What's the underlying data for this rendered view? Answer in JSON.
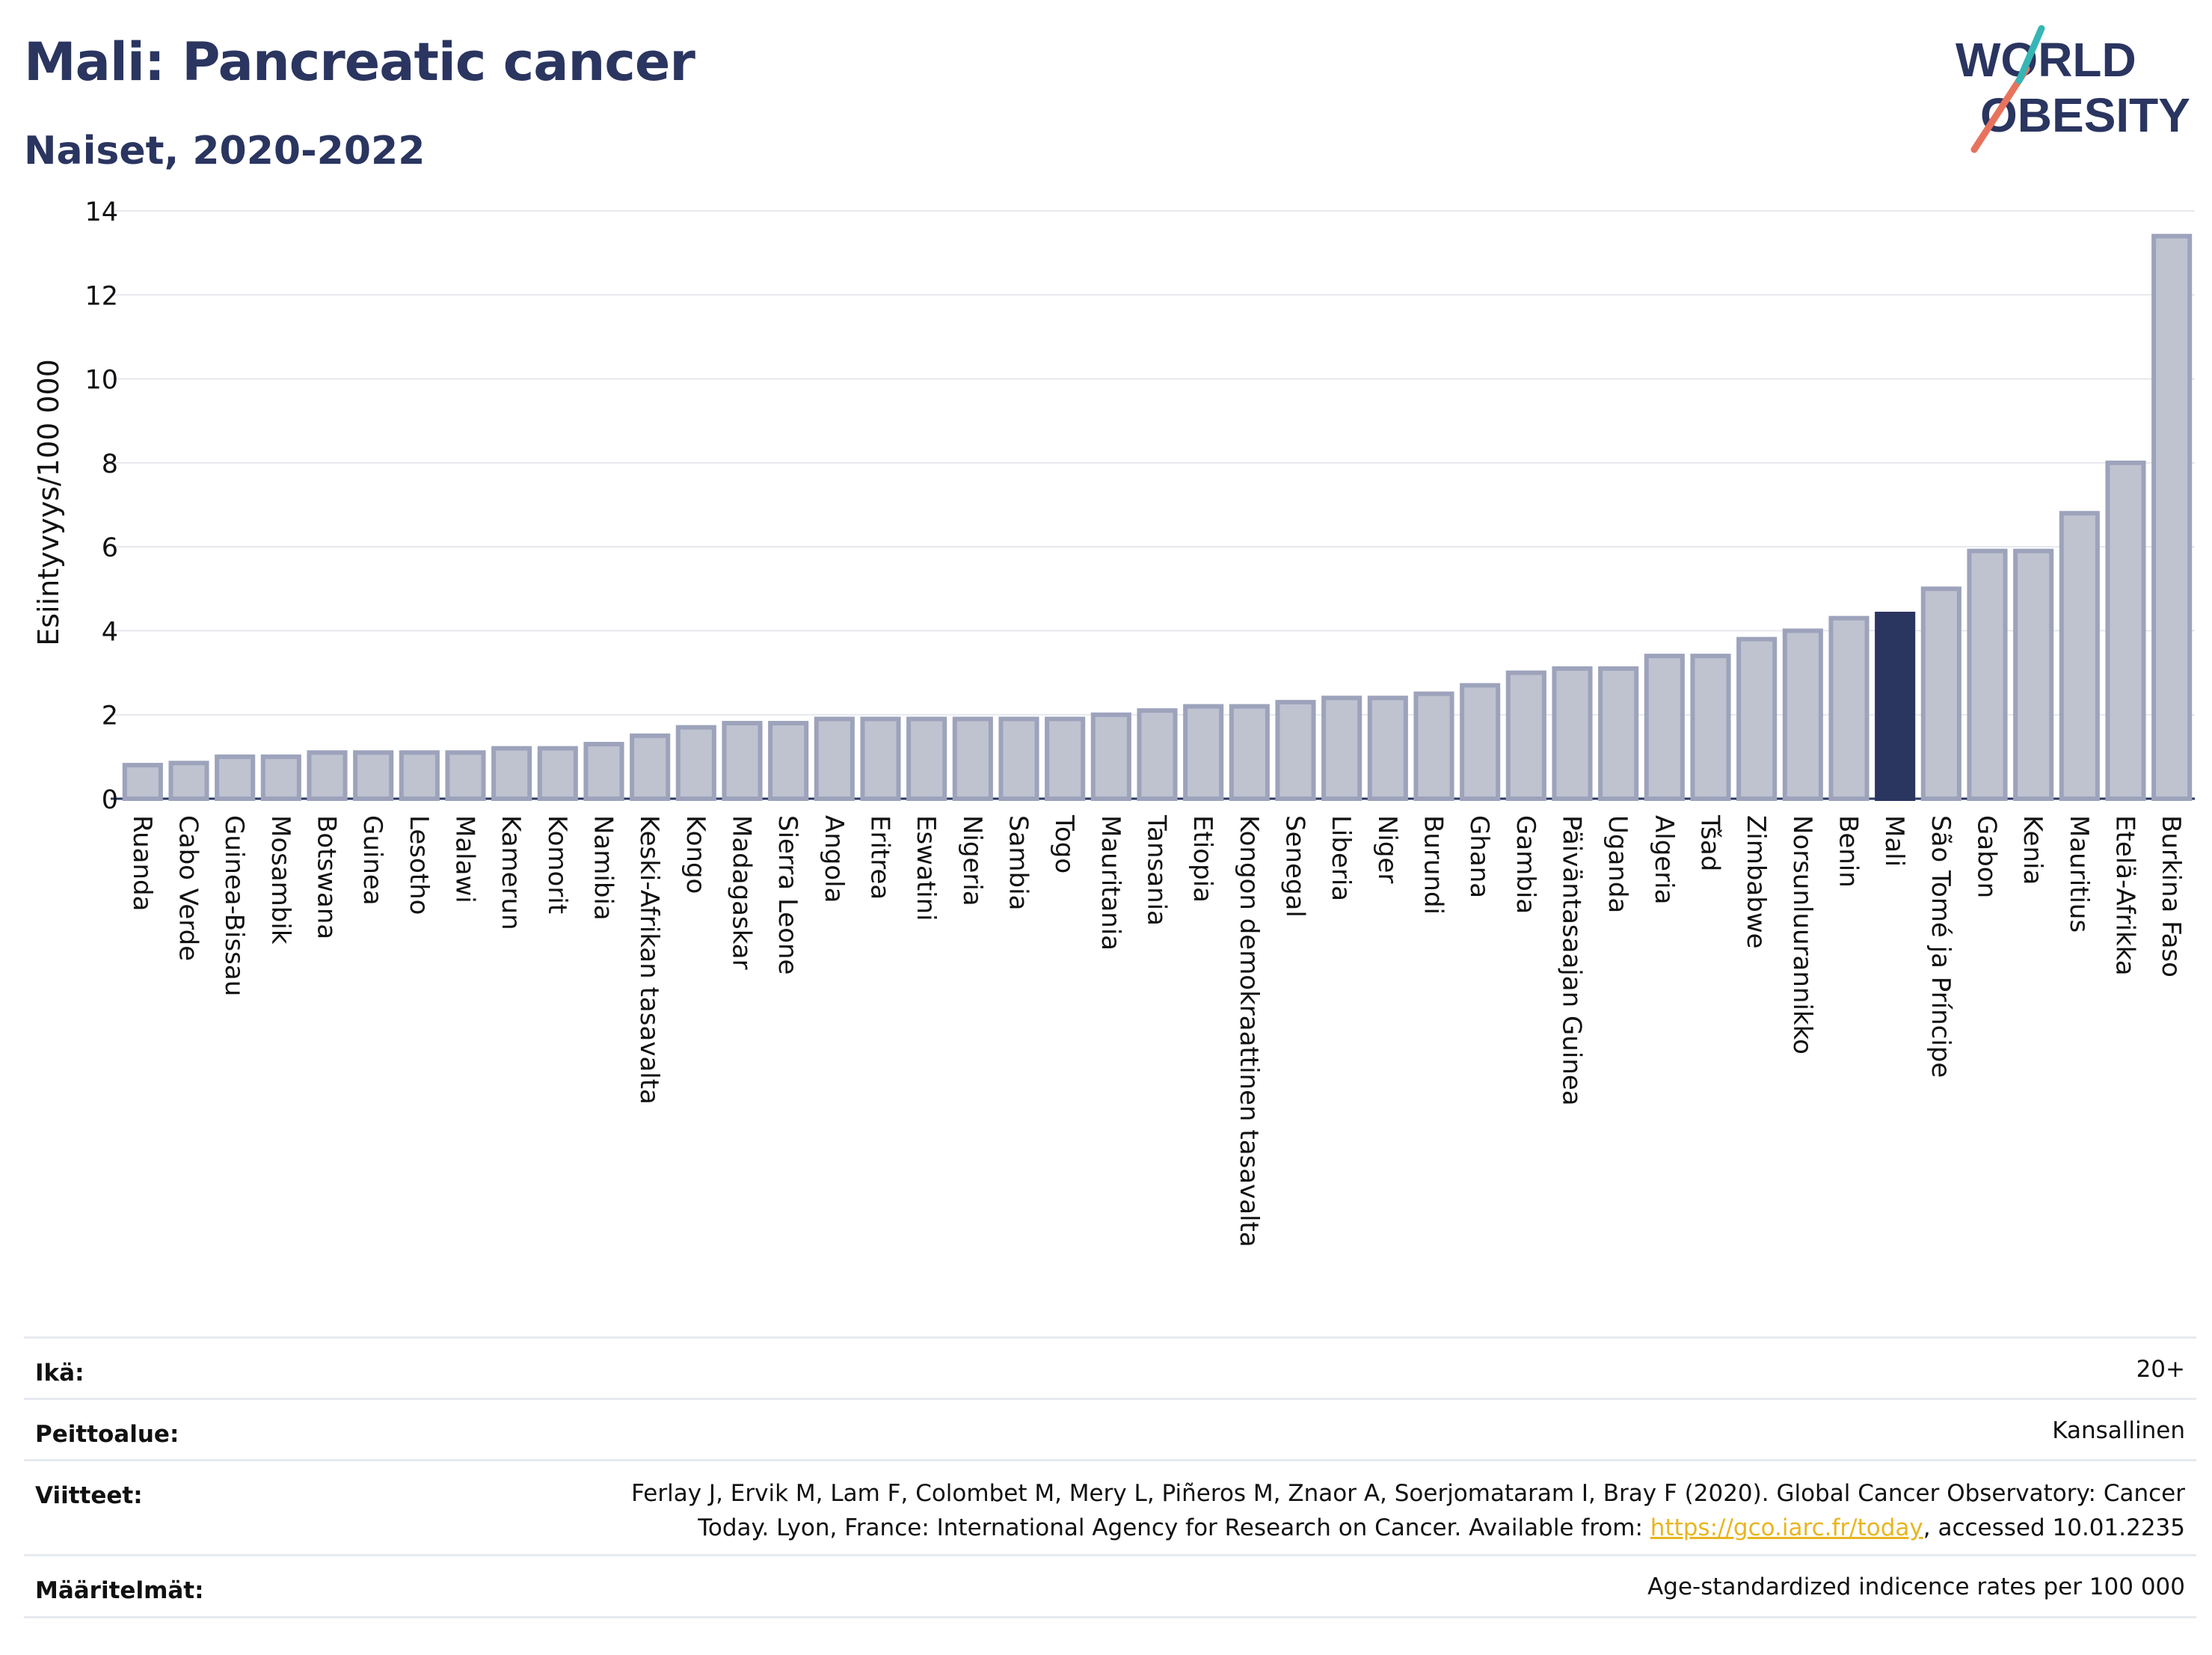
{
  "header": {
    "title": "Mali: Pancreatic cancer",
    "subtitle": "Naiset, 2020-2022"
  },
  "logo": {
    "line1": "WORLD",
    "line2": "OBESITY"
  },
  "chart_data": {
    "type": "bar",
    "ylabel": "Esiintyvyys/100 000",
    "xlabel": "",
    "ylim": [
      0,
      14
    ],
    "yticks": [
      0,
      2,
      4,
      6,
      8,
      10,
      12,
      14
    ],
    "grid": true,
    "highlight": "Mali",
    "colors": {
      "bar": "#bfc3d0",
      "bar_border": "#9da3bb",
      "highlight": "#2a3560",
      "grid": "#e6e8ee"
    },
    "categories": [
      "Ruanda",
      "Cabo Verde",
      "Guinea-Bissau",
      "Mosambik",
      "Botswana",
      "Guinea",
      "Lesotho",
      "Malawi",
      "Kamerun",
      "Komorit",
      "Namibia",
      "Keski-Afrikan tasavalta",
      "Kongo",
      "Madagaskar",
      "Sierra Leone",
      "Angola",
      "Eritrea",
      "Eswatini",
      "Nigeria",
      "Sambia",
      "Togo",
      "Mauritania",
      "Tansania",
      "Etiopia",
      "Kongon demokraattinen tasavalta",
      "Senegal",
      "Liberia",
      "Niger",
      "Burundi",
      "Ghana",
      "Gambia",
      "Päiväntasaajan Guinea",
      "Uganda",
      "Algeria",
      "Tšad",
      "Zimbabwe",
      "Norsunluurannikko",
      "Benin",
      "Mali",
      "São Tomé ja Príncipe",
      "Gabon",
      "Kenia",
      "Mauritius",
      "Etelä-Afrikka",
      "Burkina Faso"
    ],
    "values": [
      0.8,
      0.85,
      1.0,
      1.0,
      1.1,
      1.1,
      1.1,
      1.1,
      1.2,
      1.2,
      1.3,
      1.5,
      1.7,
      1.8,
      1.8,
      1.9,
      1.9,
      1.9,
      1.9,
      1.9,
      1.9,
      2.0,
      2.1,
      2.2,
      2.2,
      2.3,
      2.4,
      2.4,
      2.5,
      2.7,
      3.0,
      3.1,
      3.1,
      3.4,
      3.4,
      3.8,
      4.0,
      4.3,
      4.4,
      5.0,
      5.9,
      5.9,
      6.8,
      8.0,
      13.4
    ]
  },
  "meta": {
    "age_label": "Ikä:",
    "age_value": "20+",
    "coverage_label": "Peittoalue:",
    "coverage_value": "Kansallinen",
    "refs_label": "Viitteet:",
    "refs_line1": "Ferlay J, Ervik M, Lam F, Colombet M, Mery L, Piñeros M, Znaor A, Soerjomataram I, Bray F (2020). Global Cancer Observatory: Cancer",
    "refs_line2_pre": "Today. Lyon, France: International Agency for Research on Cancer. Available from: ",
    "refs_link": "https://gco.iarc.fr/today",
    "refs_line2_post": ", accessed 10.01.2235",
    "defs_label": "Määritelmät:",
    "defs_value": "Age-standardized indicence rates per 100 000"
  }
}
